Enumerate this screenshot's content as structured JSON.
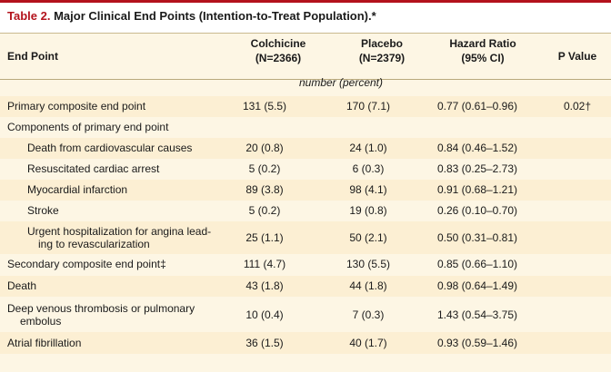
{
  "table": {
    "title_number": "Table 2.",
    "title_text": "Major Clinical End Points (Intention-to-Treat Population).*",
    "headers": {
      "end_point": "End Point",
      "colchicine_line1": "Colchicine",
      "colchicine_line2": "(N=2366)",
      "placebo_line1": "Placebo",
      "placebo_line2": "(N=2379)",
      "hr_line1": "Hazard Ratio",
      "hr_line2": "(95% CI)",
      "p_value": "P Value"
    },
    "units": "number (percent)",
    "rows": [
      {
        "label": "Primary composite end point",
        "colchicine": "131 (5.5)",
        "placebo": "170 (7.1)",
        "hr": "0.77 (0.61–0.96)",
        "p": "0.02†"
      },
      {
        "label": "Components of primary end point",
        "colchicine": "",
        "placebo": "",
        "hr": "",
        "p": ""
      },
      {
        "label": "Death from cardiovascular causes",
        "colchicine": "20 (0.8)",
        "placebo": "24 (1.0)",
        "hr": "0.84 (0.46–1.52)",
        "p": ""
      },
      {
        "label": "Resuscitated cardiac arrest",
        "colchicine": "5 (0.2)",
        "placebo": "6 (0.3)",
        "hr": "0.83 (0.25–2.73)",
        "p": ""
      },
      {
        "label": "Myocardial infarction",
        "colchicine": "89 (3.8)",
        "placebo": "98 (4.1)",
        "hr": "0.91 (0.68–1.21)",
        "p": ""
      },
      {
        "label": "Stroke",
        "colchicine": "5 (0.2)",
        "placebo": "19 (0.8)",
        "hr": "0.26 (0.10–0.70)",
        "p": ""
      },
      {
        "label_line1": "Urgent hospitalization for angina lead-",
        "label_line2": "ing to revascularization",
        "colchicine": "25 (1.1)",
        "placebo": "50 (2.1)",
        "hr": "0.50 (0.31–0.81)",
        "p": ""
      },
      {
        "label": "Secondary composite end point‡",
        "colchicine": "111 (4.7)",
        "placebo": "130 (5.5)",
        "hr": "0.85 (0.66–1.10)",
        "p": ""
      },
      {
        "label": "Death",
        "colchicine": "43 (1.8)",
        "placebo": "44 (1.8)",
        "hr": "0.98 (0.64–1.49)",
        "p": ""
      },
      {
        "label_line1": "Deep venous thrombosis or pulmonary",
        "label_line2": "embolus",
        "colchicine": "10 (0.4)",
        "placebo": "7 (0.3)",
        "hr": "1.43 (0.54–3.75)",
        "p": ""
      },
      {
        "label": "Atrial fibrillation",
        "colchicine": "36 (1.5)",
        "placebo": "40 (1.7)",
        "hr": "0.93 (0.59–1.46)",
        "p": ""
      }
    ]
  },
  "colors": {
    "accent": "#b3121c",
    "band_shade": "#fcefd3",
    "band_light": "#fdf6e4"
  }
}
